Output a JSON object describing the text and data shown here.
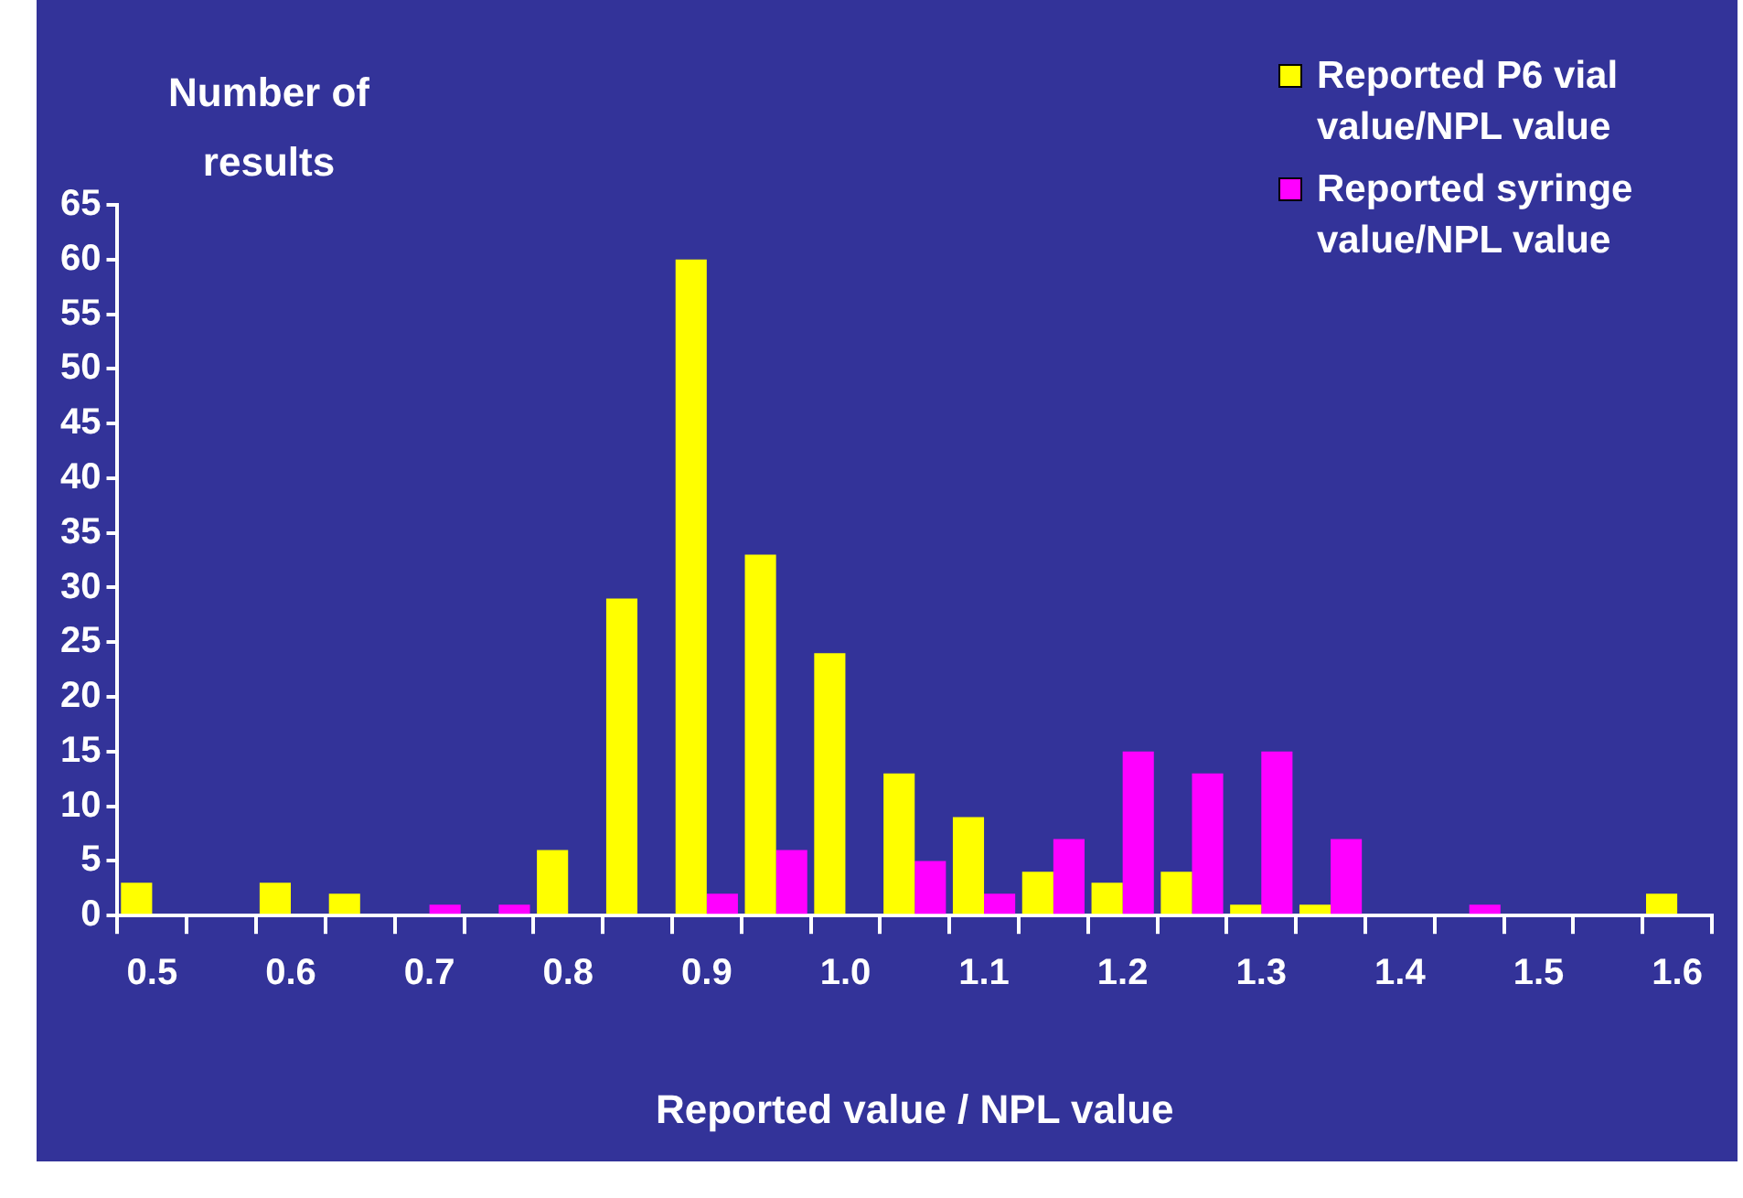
{
  "chart_data": {
    "type": "bar",
    "xlabel": "Reported value / NPL value",
    "ylabel": "Number of results",
    "categories": [
      "0.5",
      null,
      "0.6",
      null,
      "0.7",
      null,
      "0.8",
      null,
      "0.9",
      null,
      "1.0",
      null,
      "1.1",
      null,
      "1.2",
      null,
      "1.3",
      null,
      "1.4",
      null,
      "1.5",
      null,
      "1.6"
    ],
    "series": [
      {
        "name": "Reported P6 vial value/NPL value",
        "color": "#ffff00",
        "values": [
          3,
          0,
          3,
          2,
          0,
          0,
          6,
          29,
          60,
          33,
          24,
          13,
          9,
          4,
          3,
          4,
          1,
          1,
          0,
          0,
          0,
          0,
          2
        ]
      },
      {
        "name": "Reported syringe value/NPL value",
        "color": "#ff00ff",
        "values": [
          0,
          0,
          0,
          0,
          1,
          1,
          0,
          0,
          2,
          6,
          0,
          5,
          2,
          7,
          15,
          13,
          15,
          7,
          0,
          1,
          0,
          0,
          0
        ]
      }
    ],
    "ylim": [
      0,
      65
    ],
    "yticks": [
      0,
      5,
      10,
      15,
      20,
      25,
      30,
      35,
      40,
      45,
      50,
      55,
      60,
      65
    ],
    "grid": false,
    "legend": "top right"
  }
}
